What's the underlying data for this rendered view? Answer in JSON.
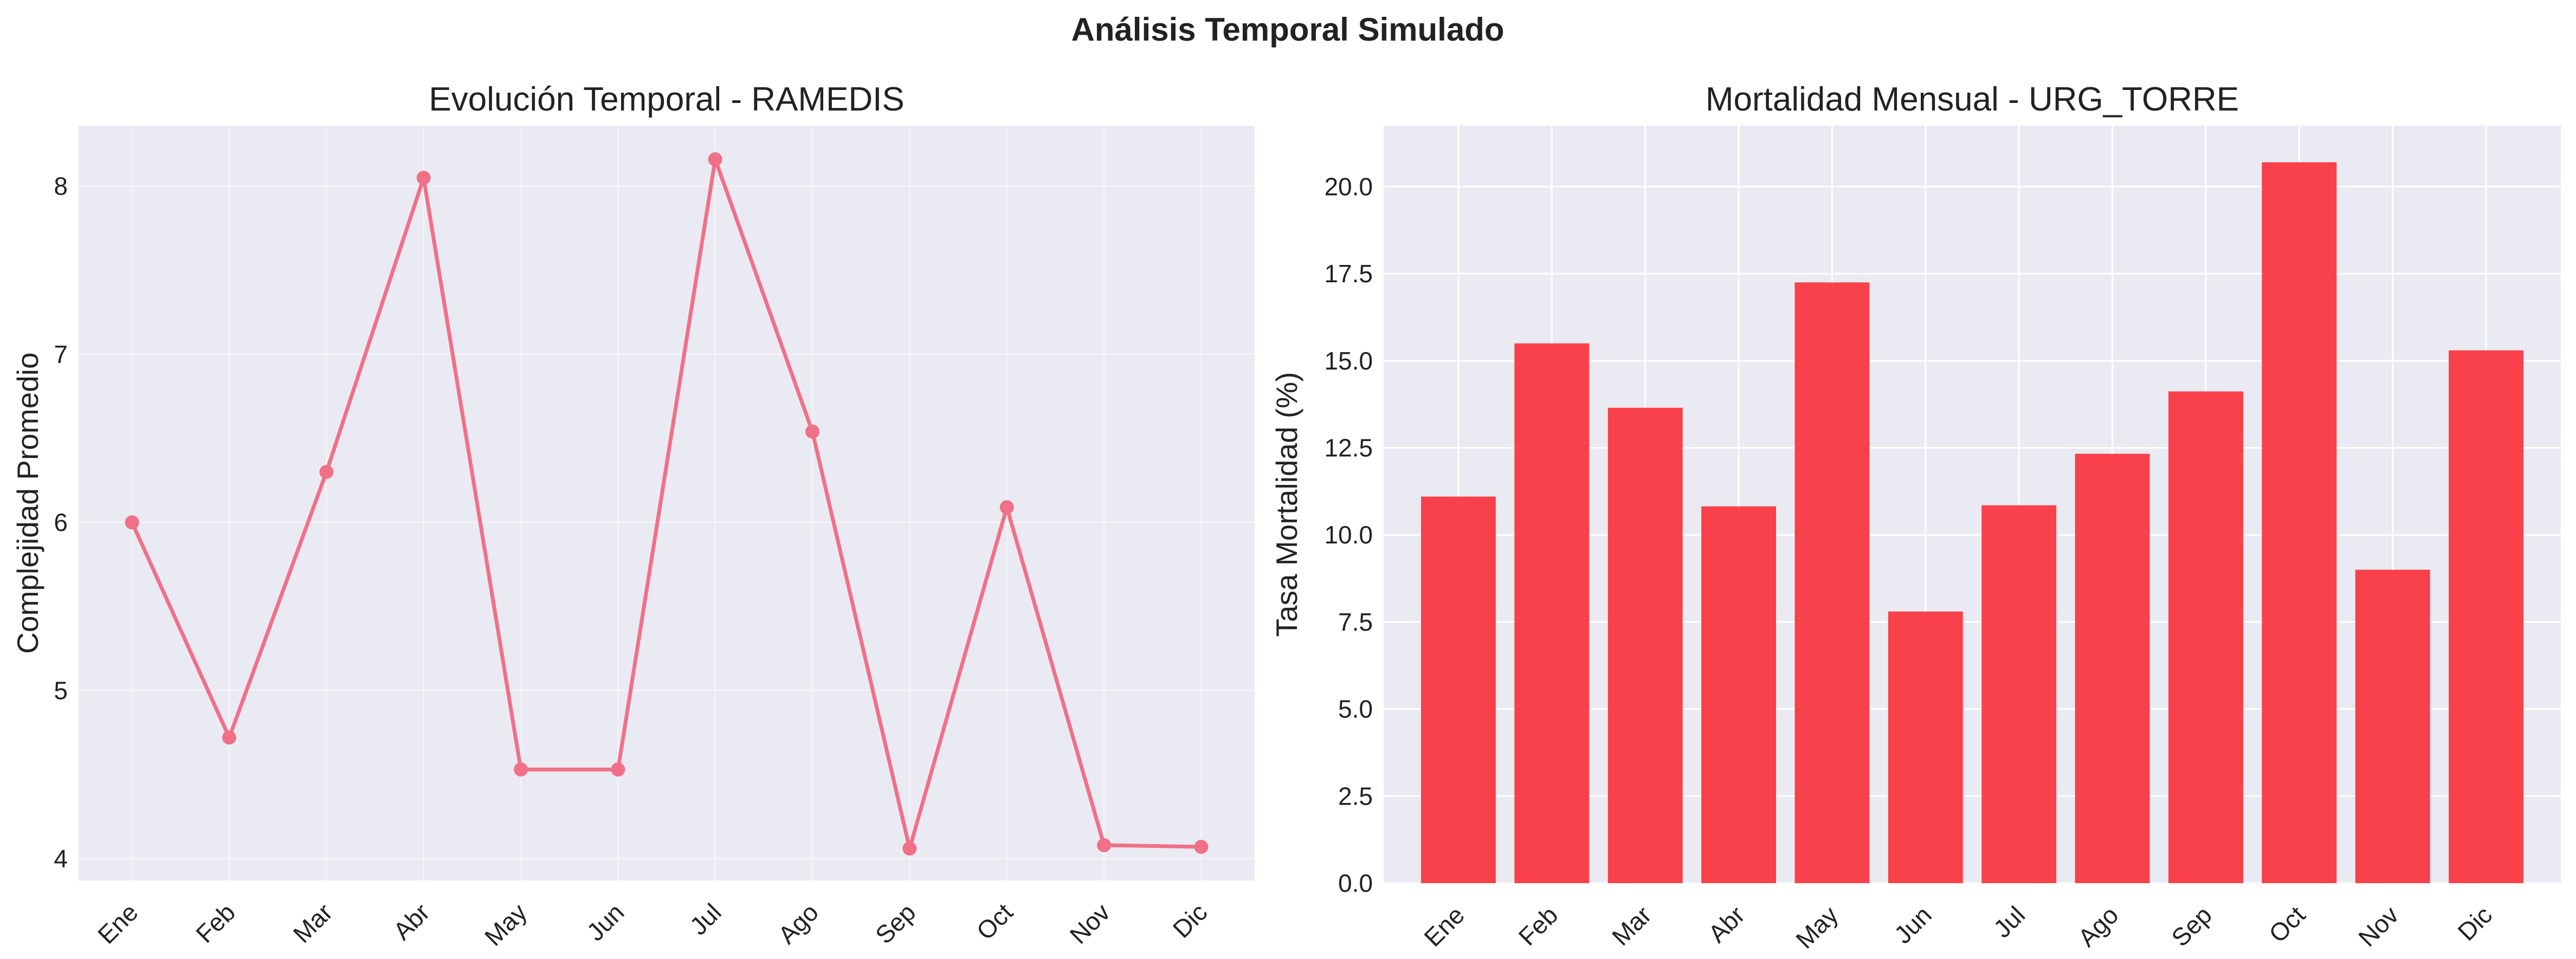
{
  "figure": {
    "title": "Análisis Temporal Simulado"
  },
  "chart_data": [
    {
      "type": "line",
      "title": "Evolución Temporal - RAMEDIS",
      "xlabel": "",
      "ylabel": "Complejidad Promedio",
      "categories": [
        "Ene",
        "Feb",
        "Mar",
        "Abr",
        "May",
        "Jun",
        "Jul",
        "Ago",
        "Sep",
        "Oct",
        "Nov",
        "Dic"
      ],
      "series": [
        {
          "values": [
            6.0,
            4.72,
            6.3,
            8.05,
            4.53,
            4.53,
            8.16,
            6.54,
            4.06,
            6.09,
            4.08,
            4.07
          ]
        }
      ],
      "ylim": [
        3.87,
        8.36
      ],
      "yticks": [
        4,
        5,
        6,
        7,
        8
      ],
      "grid": true,
      "color": "#f07088",
      "background": "#eaeaf2"
    },
    {
      "type": "bar",
      "title": "Mortalidad Mensual - URG_TORRE",
      "xlabel": "",
      "ylabel": "Tasa Mortalidad (%)",
      "categories": [
        "Ene",
        "Feb",
        "Mar",
        "Abr",
        "May",
        "Jun",
        "Jul",
        "Ago",
        "Sep",
        "Oct",
        "Nov",
        "Dic"
      ],
      "series": [
        {
          "values": [
            11.1,
            15.5,
            13.65,
            10.82,
            17.25,
            7.8,
            10.85,
            12.33,
            14.12,
            20.7,
            9.0,
            15.3
          ]
        }
      ],
      "ylim": [
        0,
        21.75
      ],
      "yticks": [
        0.0,
        2.5,
        5.0,
        7.5,
        10.0,
        12.5,
        15.0,
        17.5,
        20.0
      ],
      "ytick_labels": [
        "0.0",
        "2.5",
        "5.0",
        "7.5",
        "10.0",
        "12.5",
        "15.0",
        "17.5",
        "20.0"
      ],
      "grid": true,
      "color": "#f8414a",
      "background": "#eaeaf2"
    }
  ]
}
